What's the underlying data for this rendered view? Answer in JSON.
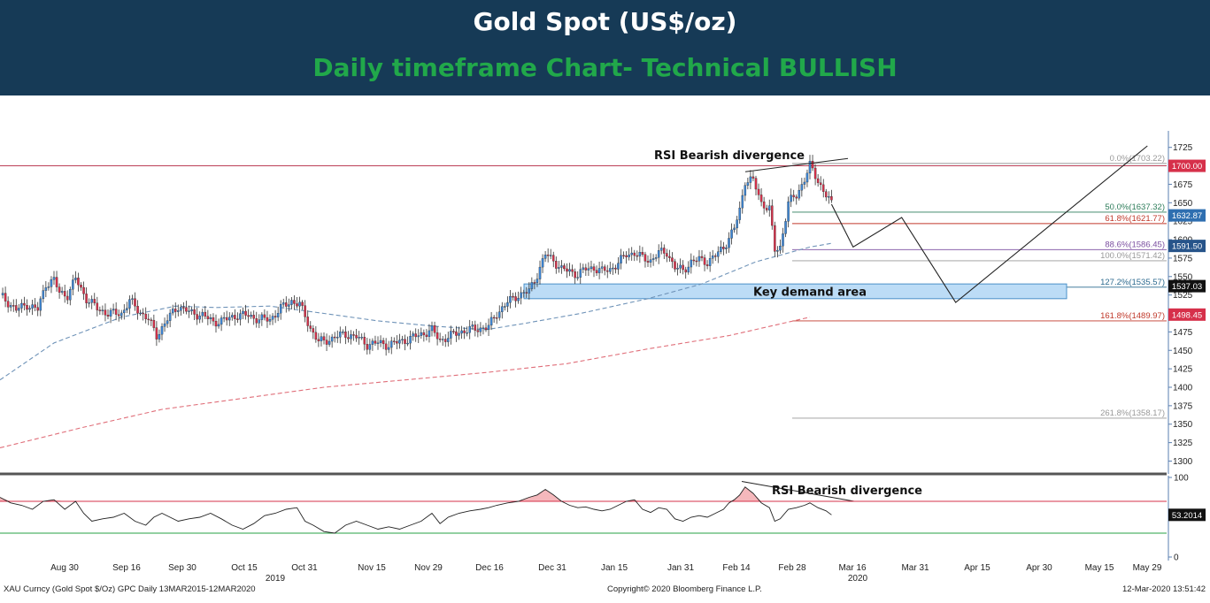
{
  "header": {
    "title": "Gold Spot (US$/oz)",
    "subtitle": "Daily timeframe Chart- Technical BULLISH"
  },
  "chart_data": {
    "type": "candlestick",
    "y_range": [
      1285,
      1745
    ],
    "y_ticks": [
      1300,
      1325,
      1350,
      1375,
      1400,
      1425,
      1450,
      1475,
      1500,
      1525,
      1550,
      1575,
      1600,
      1625,
      1650,
      1675,
      1700,
      1725
    ],
    "rsi_range": [
      0,
      100
    ],
    "rsi_ticks": [
      0,
      100
    ],
    "x_dates": [
      "Aug 30",
      "Sep 16",
      "Sep 30",
      "Oct 15",
      "Oct 31",
      "Nov 15",
      "Nov 29",
      "Dec 16",
      "Dec 31",
      "Jan 15",
      "Jan 31",
      "Feb 14",
      "Feb 28",
      "Mar 16",
      "Mar 31",
      "Apr 15",
      "Apr 30",
      "May 15",
      "May 29"
    ],
    "x_years": [
      "2019",
      "2020"
    ],
    "price_path": [
      [
        0,
        1525
      ],
      [
        6,
        1505
      ],
      [
        10,
        1512
      ],
      [
        14,
        1505
      ],
      [
        17,
        1540
      ],
      [
        20,
        1545
      ],
      [
        22,
        1528
      ],
      [
        25,
        1525
      ],
      [
        28,
        1547
      ],
      [
        32,
        1520
      ],
      [
        36,
        1507
      ],
      [
        40,
        1500
      ],
      [
        45,
        1500
      ],
      [
        48,
        1517
      ],
      [
        51,
        1505
      ],
      [
        55,
        1492
      ],
      [
        58,
        1470
      ],
      [
        62,
        1492
      ],
      [
        66,
        1510
      ],
      [
        71,
        1500
      ],
      [
        75,
        1498
      ],
      [
        79,
        1488
      ],
      [
        84,
        1492
      ],
      [
        88,
        1498
      ],
      [
        92,
        1497
      ],
      [
        96,
        1492
      ],
      [
        100,
        1492
      ],
      [
        104,
        1507
      ],
      [
        108,
        1517
      ],
      [
        111,
        1512
      ],
      [
        115,
        1480
      ],
      [
        118,
        1462
      ],
      [
        120,
        1462
      ],
      [
        124,
        1468
      ],
      [
        128,
        1472
      ],
      [
        132,
        1468
      ],
      [
        136,
        1458
      ],
      [
        140,
        1460
      ],
      [
        144,
        1457
      ],
      [
        148,
        1462
      ],
      [
        152,
        1466
      ],
      [
        156,
        1472
      ],
      [
        160,
        1477
      ],
      [
        163,
        1464
      ],
      [
        166,
        1468
      ],
      [
        170,
        1475
      ],
      [
        174,
        1478
      ],
      [
        178,
        1480
      ],
      [
        181,
        1482
      ],
      [
        184,
        1500
      ],
      [
        188,
        1515
      ],
      [
        192,
        1525
      ],
      [
        196,
        1530
      ],
      [
        199,
        1553
      ],
      [
        202,
        1580
      ],
      [
        205,
        1572
      ],
      [
        208,
        1560
      ],
      [
        211,
        1557
      ],
      [
        214,
        1553
      ],
      [
        217,
        1560
      ],
      [
        220,
        1562
      ],
      [
        223,
        1557
      ],
      [
        226,
        1560
      ],
      [
        229,
        1568
      ],
      [
        232,
        1580
      ],
      [
        235,
        1582
      ],
      [
        238,
        1575
      ],
      [
        241,
        1572
      ],
      [
        244,
        1582
      ],
      [
        247,
        1583
      ],
      [
        250,
        1562
      ],
      [
        253,
        1558
      ],
      [
        256,
        1570
      ],
      [
        259,
        1573
      ],
      [
        262,
        1570
      ],
      [
        265,
        1578
      ],
      [
        268,
        1590
      ],
      [
        270,
        1602
      ],
      [
        272,
        1615
      ],
      [
        274,
        1640
      ],
      [
        276,
        1680
      ],
      [
        279,
        1680
      ],
      [
        282,
        1650
      ],
      [
        285,
        1642
      ],
      [
        287,
        1585
      ],
      [
        289,
        1590
      ],
      [
        292,
        1650
      ],
      [
        295,
        1660
      ],
      [
        298,
        1682
      ],
      [
        300,
        1700
      ],
      [
        303,
        1680
      ],
      [
        306,
        1660
      ],
      [
        308,
        1648
      ]
    ],
    "ma_fast": [
      [
        0,
        1410
      ],
      [
        20,
        1460
      ],
      [
        45,
        1495
      ],
      [
        65,
        1510
      ],
      [
        80,
        1508
      ],
      [
        100,
        1510
      ],
      [
        120,
        1500
      ],
      [
        140,
        1490
      ],
      [
        160,
        1483
      ],
      [
        180,
        1478
      ],
      [
        195,
        1487
      ],
      [
        215,
        1500
      ],
      [
        240,
        1520
      ],
      [
        260,
        1540
      ],
      [
        280,
        1570
      ],
      [
        300,
        1590
      ],
      [
        308,
        1595
      ]
    ],
    "ma_slow": [
      [
        0,
        1318
      ],
      [
        30,
        1345
      ],
      [
        60,
        1370
      ],
      [
        90,
        1385
      ],
      [
        120,
        1400
      ],
      [
        150,
        1410
      ],
      [
        180,
        1420
      ],
      [
        210,
        1432
      ],
      [
        240,
        1452
      ],
      [
        270,
        1470
      ],
      [
        300,
        1495
      ]
    ],
    "rsi": [
      [
        0,
        75
      ],
      [
        4,
        68
      ],
      [
        8,
        65
      ],
      [
        12,
        60
      ],
      [
        16,
        70
      ],
      [
        20,
        72
      ],
      [
        24,
        60
      ],
      [
        28,
        70
      ],
      [
        31,
        55
      ],
      [
        34,
        45
      ],
      [
        38,
        48
      ],
      [
        42,
        50
      ],
      [
        46,
        55
      ],
      [
        50,
        45
      ],
      [
        54,
        40
      ],
      [
        57,
        50
      ],
      [
        60,
        55
      ],
      [
        63,
        50
      ],
      [
        66,
        45
      ],
      [
        70,
        48
      ],
      [
        74,
        50
      ],
      [
        78,
        55
      ],
      [
        82,
        48
      ],
      [
        86,
        40
      ],
      [
        90,
        35
      ],
      [
        94,
        42
      ],
      [
        98,
        52
      ],
      [
        102,
        55
      ],
      [
        106,
        60
      ],
      [
        110,
        62
      ],
      [
        113,
        45
      ],
      [
        116,
        40
      ],
      [
        120,
        32
      ],
      [
        124,
        30
      ],
      [
        128,
        40
      ],
      [
        132,
        45
      ],
      [
        136,
        40
      ],
      [
        140,
        35
      ],
      [
        144,
        38
      ],
      [
        148,
        35
      ],
      [
        152,
        40
      ],
      [
        156,
        45
      ],
      [
        160,
        55
      ],
      [
        163,
        42
      ],
      [
        166,
        50
      ],
      [
        170,
        55
      ],
      [
        174,
        58
      ],
      [
        178,
        60
      ],
      [
        181,
        62
      ],
      [
        184,
        65
      ],
      [
        188,
        68
      ],
      [
        192,
        70
      ],
      [
        196,
        75
      ],
      [
        199,
        78
      ],
      [
        202,
        85
      ],
      [
        205,
        78
      ],
      [
        208,
        70
      ],
      [
        211,
        65
      ],
      [
        214,
        62
      ],
      [
        217,
        63
      ],
      [
        220,
        60
      ],
      [
        223,
        58
      ],
      [
        226,
        60
      ],
      [
        229,
        65
      ],
      [
        232,
        70
      ],
      [
        235,
        72
      ],
      [
        238,
        60
      ],
      [
        241,
        56
      ],
      [
        244,
        62
      ],
      [
        247,
        60
      ],
      [
        250,
        48
      ],
      [
        253,
        45
      ],
      [
        256,
        50
      ],
      [
        259,
        52
      ],
      [
        262,
        50
      ],
      [
        265,
        55
      ],
      [
        268,
        60
      ],
      [
        270,
        68
      ],
      [
        272,
        72
      ],
      [
        274,
        78
      ],
      [
        276,
        88
      ],
      [
        279,
        80
      ],
      [
        282,
        68
      ],
      [
        285,
        62
      ],
      [
        287,
        45
      ],
      [
        289,
        48
      ],
      [
        292,
        60
      ],
      [
        295,
        62
      ],
      [
        298,
        65
      ],
      [
        300,
        68
      ],
      [
        303,
        62
      ],
      [
        306,
        58
      ],
      [
        308,
        53
      ]
    ],
    "rsi_upper": 70,
    "rsi_lower": 30,
    "rsi_value_label": "53.2014",
    "fib_levels": [
      {
        "label": "0.0%(1703.22)",
        "value": 1703.22,
        "color": "#999999"
      },
      {
        "label": "50.0%(1637.32)",
        "value": 1637.32,
        "color": "#2e7d5b"
      },
      {
        "label": "61.8%(1621.77)",
        "value": 1621.77,
        "color": "#c0392b"
      },
      {
        "label": "88.6%(1586.45)",
        "value": 1586.45,
        "color": "#7b4fa0"
      },
      {
        "label": "100.0%(1571.42)",
        "value": 1571.42,
        "color": "#999999"
      },
      {
        "label": "127.2%(1535.57)",
        "value": 1535.57,
        "color": "#2c6a8f"
      },
      {
        "label": "161.8%(1489.97)",
        "value": 1489.97,
        "color": "#c0392b"
      },
      {
        "label": "261.8%(1358.17)",
        "value": 1358.17,
        "color": "#999999"
      }
    ],
    "price_tags": [
      {
        "label": "1700.00",
        "value": 1700,
        "color": "#d6304a"
      },
      {
        "label": "1632.87",
        "value": 1632.87,
        "color": "#2f6fb0"
      },
      {
        "label": "1591.50",
        "value": 1591.5,
        "color": "#27548a"
      },
      {
        "label": "1537.03",
        "value": 1537.03,
        "color": "#111111"
      },
      {
        "label": "1498.45",
        "value": 1498.45,
        "color": "#d6304a"
      }
    ],
    "resistance_line": 1700,
    "demand_zone": {
      "label": "Key demand area",
      "from": 1520,
      "to": 1540
    },
    "projection_path": [
      [
        308,
        1648
      ],
      [
        316,
        1590
      ],
      [
        334,
        1630
      ],
      [
        354,
        1515
      ],
      [
        425,
        1727
      ]
    ],
    "annotations": {
      "price_divergence": "RSI Bearish divergence",
      "rsi_divergence": "RSI Bearish divergence"
    }
  },
  "footer": {
    "left": "XAU Curncy (Gold Spot  $/Oz) GPC  Daily 13MAR2015-12MAR2020",
    "center": "Copyright© 2020 Bloomberg Finance L.P.",
    "right": "12-Mar-2020 13:51:42"
  }
}
